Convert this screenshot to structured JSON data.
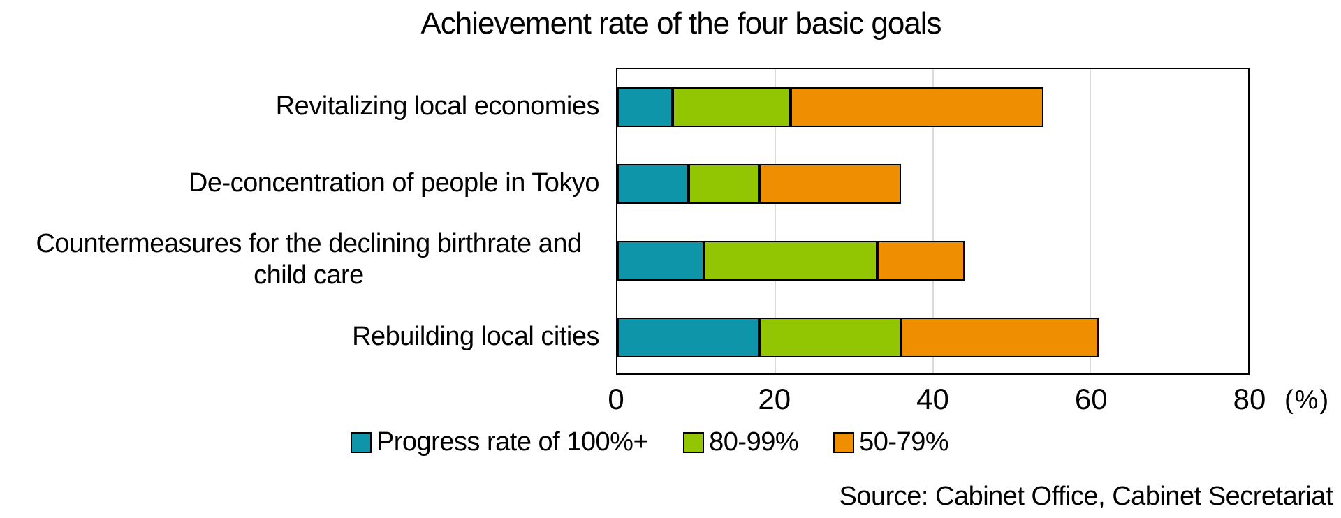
{
  "chart_data": {
    "type": "bar",
    "orientation": "horizontal",
    "stacked": true,
    "title": "Achievement rate of the four basic goals",
    "categories": [
      "Revitalizing local economies",
      "De-concentration of people in Tokyo",
      "Countermeasures for the declining birthrate and child care",
      "Rebuilding local cities"
    ],
    "series": [
      {
        "name": "Progress rate of 100%+",
        "color": "#0e95aa",
        "values": [
          7,
          9,
          11,
          18
        ]
      },
      {
        "name": "80-99%",
        "color": "#92c502",
        "values": [
          15,
          9,
          22,
          18
        ]
      },
      {
        "name": "50-79%",
        "color": "#ef8f00",
        "values": [
          32,
          18,
          11,
          25
        ]
      }
    ],
    "cumulative_totals": [
      54,
      36,
      44,
      61
    ],
    "xlim": [
      0,
      80
    ],
    "xticks": [
      0,
      20,
      40,
      60,
      80
    ],
    "gridlines": [
      20,
      40,
      60
    ],
    "x_unit_label": "(%)",
    "legend_position": "bottom",
    "grid": true,
    "gridline_color": "#d9d9d9",
    "bar_border_color": "#000000",
    "source": "Source: Cabinet Office, Cabinet Secretariat"
  }
}
